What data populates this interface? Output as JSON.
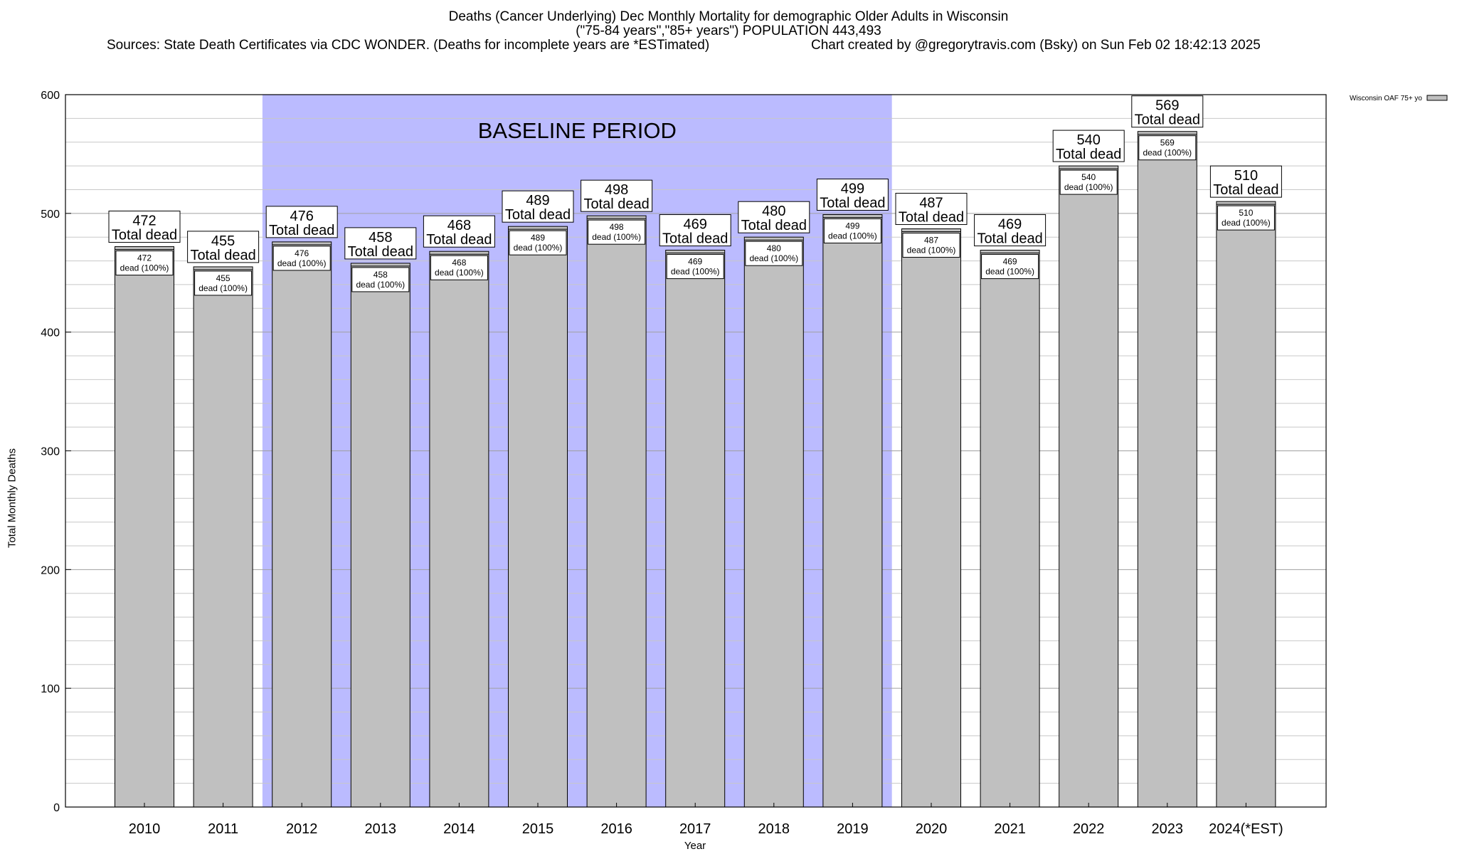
{
  "header": {
    "title_line1": "Deaths (Cancer Underlying) Dec Monthly Mortality for demographic Older Adults in Wisconsin",
    "title_line2": "(\"75-84 years\",\"85+ years\") POPULATION 443,493",
    "sources": "Sources: State Death Certificates via CDC WONDER. (Deaths for incomplete years are *ESTimated)",
    "credit": "Chart created by @gregorytravis.com (Bsky) on Sun Feb 02 18:42:13 2025"
  },
  "chart_data": {
    "type": "bar",
    "categories": [
      "2010",
      "2011",
      "2012",
      "2013",
      "2014",
      "2015",
      "2016",
      "2017",
      "2018",
      "2019",
      "2020",
      "2021",
      "2022",
      "2023",
      "2024(*EST)"
    ],
    "series": [
      {
        "name": "Wisconsin OAF 75+ yo",
        "values": [
          472,
          455,
          476,
          458,
          468,
          489,
          498,
          469,
          480,
          499,
          487,
          469,
          540,
          569,
          510
        ]
      }
    ],
    "total_label_suffix": "Total dead",
    "inner_label_suffix": "dead (100%)",
    "xlabel": "Year",
    "ylabel": "Total Monthly Deaths",
    "ylim": [
      0,
      600
    ],
    "yticks": [
      0,
      100,
      200,
      300,
      400,
      500,
      600
    ],
    "baseline": {
      "label": "BASELINE PERIOD",
      "start": "2012",
      "end": "2019",
      "color": "#bbbbff"
    },
    "bar_color": "#c0c0c0",
    "legend_position": "top-right",
    "grid": true
  }
}
